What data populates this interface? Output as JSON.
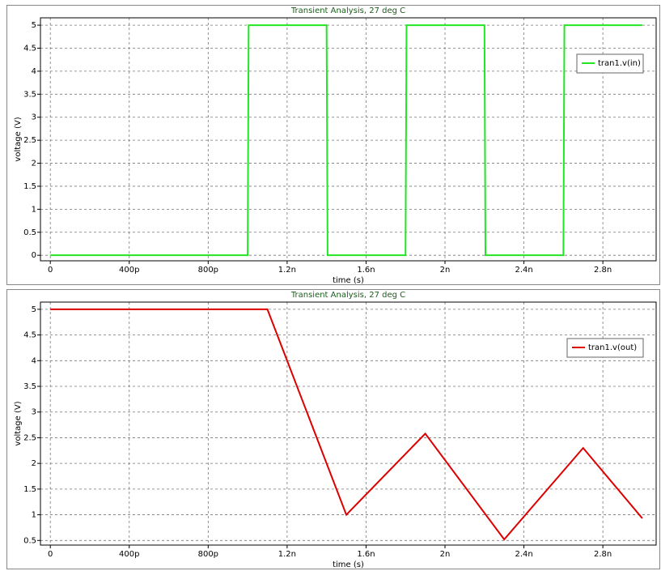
{
  "chart_data": [
    {
      "type": "line",
      "title": "Transient Analysis, 27 deg C",
      "x_label": "time (s)",
      "y_label": "voltage (V)",
      "x": [
        0,
        1e-09,
        1.005e-09,
        1.4e-09,
        1.405e-09,
        1.8e-09,
        1.805e-09,
        2.2e-09,
        2.205e-09,
        2.6e-09,
        2.605e-09,
        3e-09
      ],
      "series": [
        {
          "name": "tran1.v(in)",
          "color": "#22e622",
          "values": [
            0,
            0,
            5,
            5,
            0,
            0,
            5,
            5,
            0,
            0,
            5,
            5
          ]
        }
      ],
      "xlim": [
        -5e-11,
        3.07e-09
      ],
      "xticks": [
        0,
        {
          "value": 4e-10,
          "label": "400p"
        },
        {
          "value": 8e-10,
          "label": "800p"
        },
        {
          "value": 1.2e-09,
          "label": "1.2n"
        },
        {
          "value": 1.6e-09,
          "label": "1.6n"
        },
        {
          "value": 2e-09,
          "label": "2n"
        },
        {
          "value": 2.4e-09,
          "label": "2.4n"
        },
        {
          "value": 2.8e-09,
          "label": "2.8n"
        }
      ],
      "ylim": [
        -0.12,
        5.16
      ],
      "yticks": [
        0,
        0.5,
        1,
        1.5,
        2,
        2.5,
        3,
        3.5,
        4,
        4.5,
        5
      ],
      "grid": true,
      "legend": "upper right"
    },
    {
      "type": "line",
      "title": "Transient Analysis, 27 deg C",
      "x_label": "time (s)",
      "y_label": "voltage (V)",
      "x": [
        0,
        1.1e-09,
        1.5e-09,
        1.9e-09,
        2.3e-09,
        2.7e-09,
        3e-09
      ],
      "series": [
        {
          "name": "tran1.v(out)",
          "color": "#dd0000",
          "values": [
            5,
            5,
            1.0,
            2.58,
            0.52,
            2.3,
            0.93
          ]
        }
      ],
      "xlim": [
        -5e-11,
        3.07e-09
      ],
      "xticks": [
        0,
        {
          "value": 4e-10,
          "label": "400p"
        },
        {
          "value": 8e-10,
          "label": "800p"
        },
        {
          "value": 1.2e-09,
          "label": "1.2n"
        },
        {
          "value": 1.6e-09,
          "label": "1.6n"
        },
        {
          "value": 2e-09,
          "label": "2n"
        },
        {
          "value": 2.4e-09,
          "label": "2.4n"
        },
        {
          "value": 2.8e-09,
          "label": "2.8n"
        }
      ],
      "ylim": [
        0.41,
        5.14
      ],
      "yticks": [
        0.5,
        1,
        1.5,
        2,
        2.5,
        3,
        3.5,
        4,
        4.5,
        5
      ],
      "grid": true,
      "legend": "upper right"
    }
  ]
}
